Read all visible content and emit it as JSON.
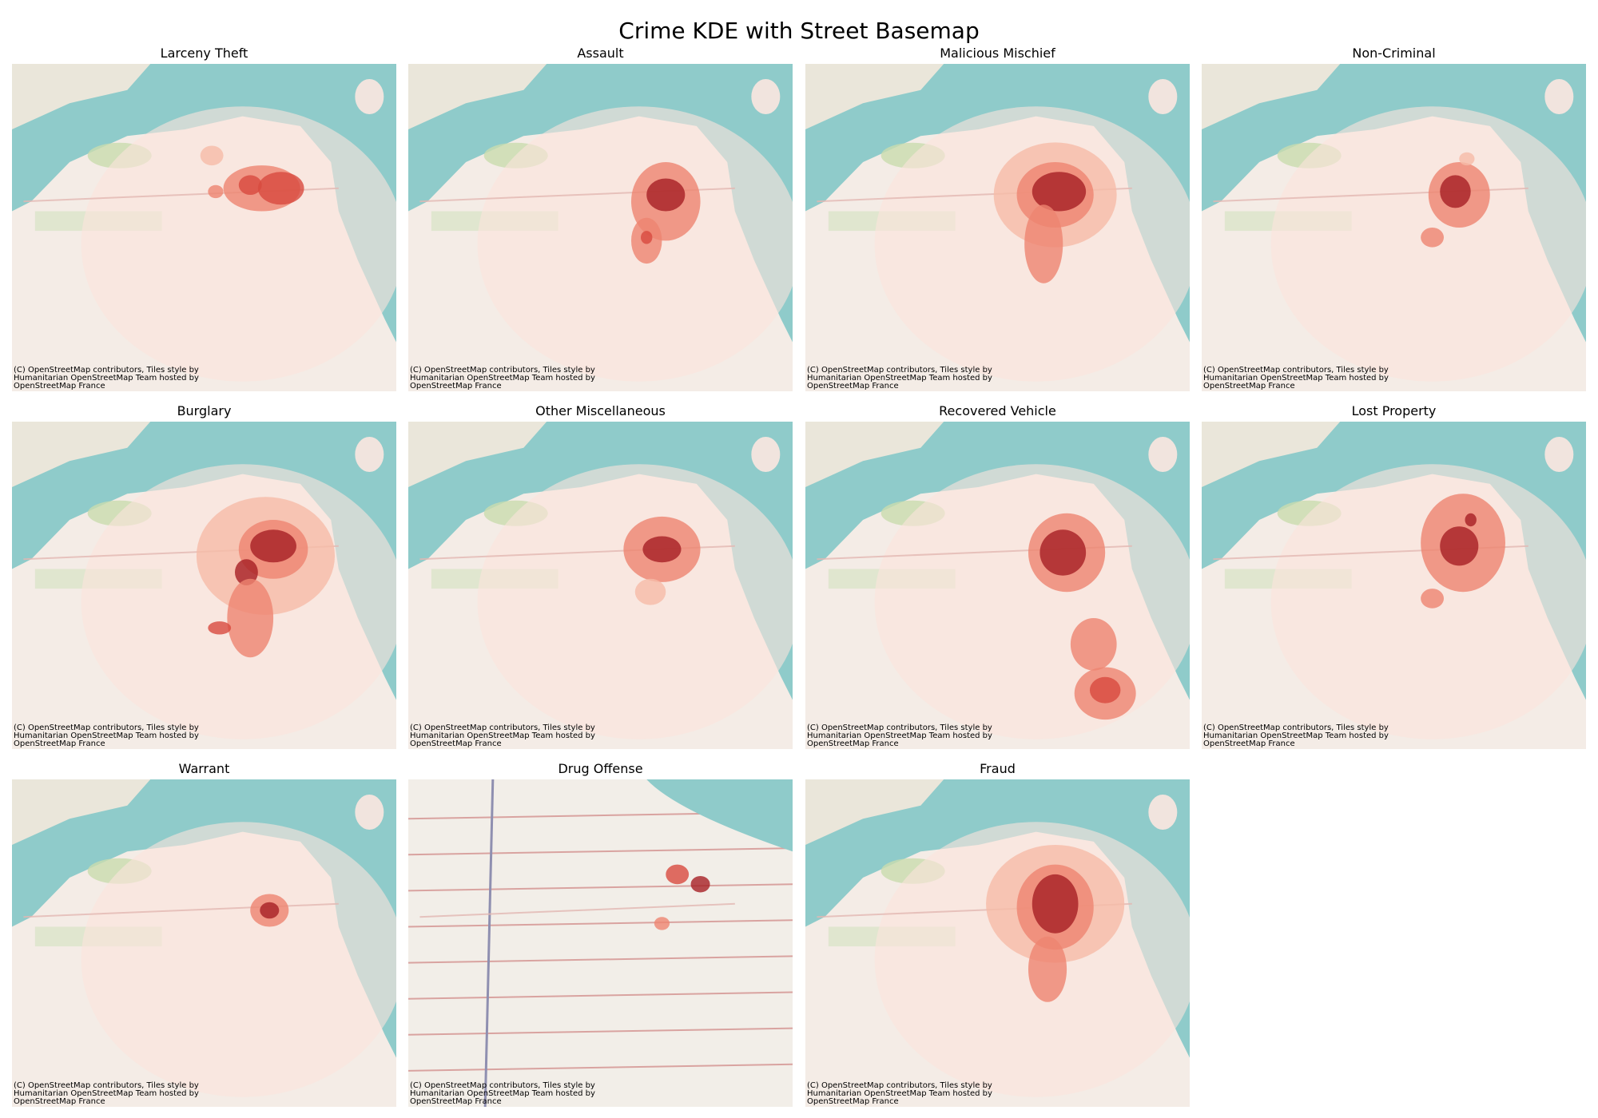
{
  "title": "Crime KDE with Street Basemap",
  "panels": [
    {
      "title": "Larceny Theft",
      "attribution": [
        "(C) OpenStreetMap contributors, Tiles style by",
        "Humanitarian OpenStreetMap Team hosted by",
        "OpenStreetMap France"
      ]
    },
    {
      "title": "Assault",
      "attribution": [
        "(C) OpenStreetMap contributors, Tiles style by",
        "Humanitarian OpenStreetMap Team hosted by",
        "OpenStreetMap France"
      ]
    },
    {
      "title": "Malicious Mischief",
      "attribution": [
        "(C) OpenStreetMap contributors, Tiles style by",
        "Humanitarian OpenStreetMap Team hosted by",
        "OpenStreetMap France"
      ]
    },
    {
      "title": "Non-Criminal",
      "attribution": [
        "(C) OpenStreetMap contributors, Tiles style by",
        "Humanitarian OpenStreetMap Team hosted by",
        "OpenStreetMap France"
      ]
    },
    {
      "title": "Burglary",
      "attribution": [
        "(C) OpenStreetMap contributors, Tiles style by",
        "Humanitarian OpenStreetMap Team hosted by",
        "OpenStreetMap France"
      ]
    },
    {
      "title": "Other Miscellaneous",
      "attribution": [
        "(C) OpenStreetMap contributors, Tiles style by",
        "Humanitarian OpenStreetMap Team hosted by",
        "OpenStreetMap France"
      ]
    },
    {
      "title": "Recovered Vehicle",
      "attribution": [
        "(C) OpenStreetMap contributors, Tiles style by",
        "Humanitarian OpenStreetMap Team hosted by",
        "OpenStreetMap France"
      ]
    },
    {
      "title": "Lost Property",
      "attribution": [
        "(C) OpenStreetMap contributors, Tiles style by",
        "Humanitarian OpenStreetMap Team hosted by",
        "OpenStreetMap France"
      ]
    },
    {
      "title": "Warrant",
      "attribution": [
        "(C) OpenStreetMap contributors, Tiles style by",
        "Humanitarian OpenStreetMap Team hosted by",
        "OpenStreetMap France"
      ]
    },
    {
      "title": "Drug Offense",
      "attribution": [
        "(C) OpenStreetMap contributors, Tiles style by",
        "Humanitarian OpenStreetMap Team hosted by",
        "OpenStreetMap France"
      ]
    },
    {
      "title": "Fraud",
      "attribution": [
        "(C) OpenStreetMap contributors, Tiles style by",
        "Humanitarian OpenStreetMap Team hosted by",
        "OpenStreetMap France"
      ]
    }
  ]
}
